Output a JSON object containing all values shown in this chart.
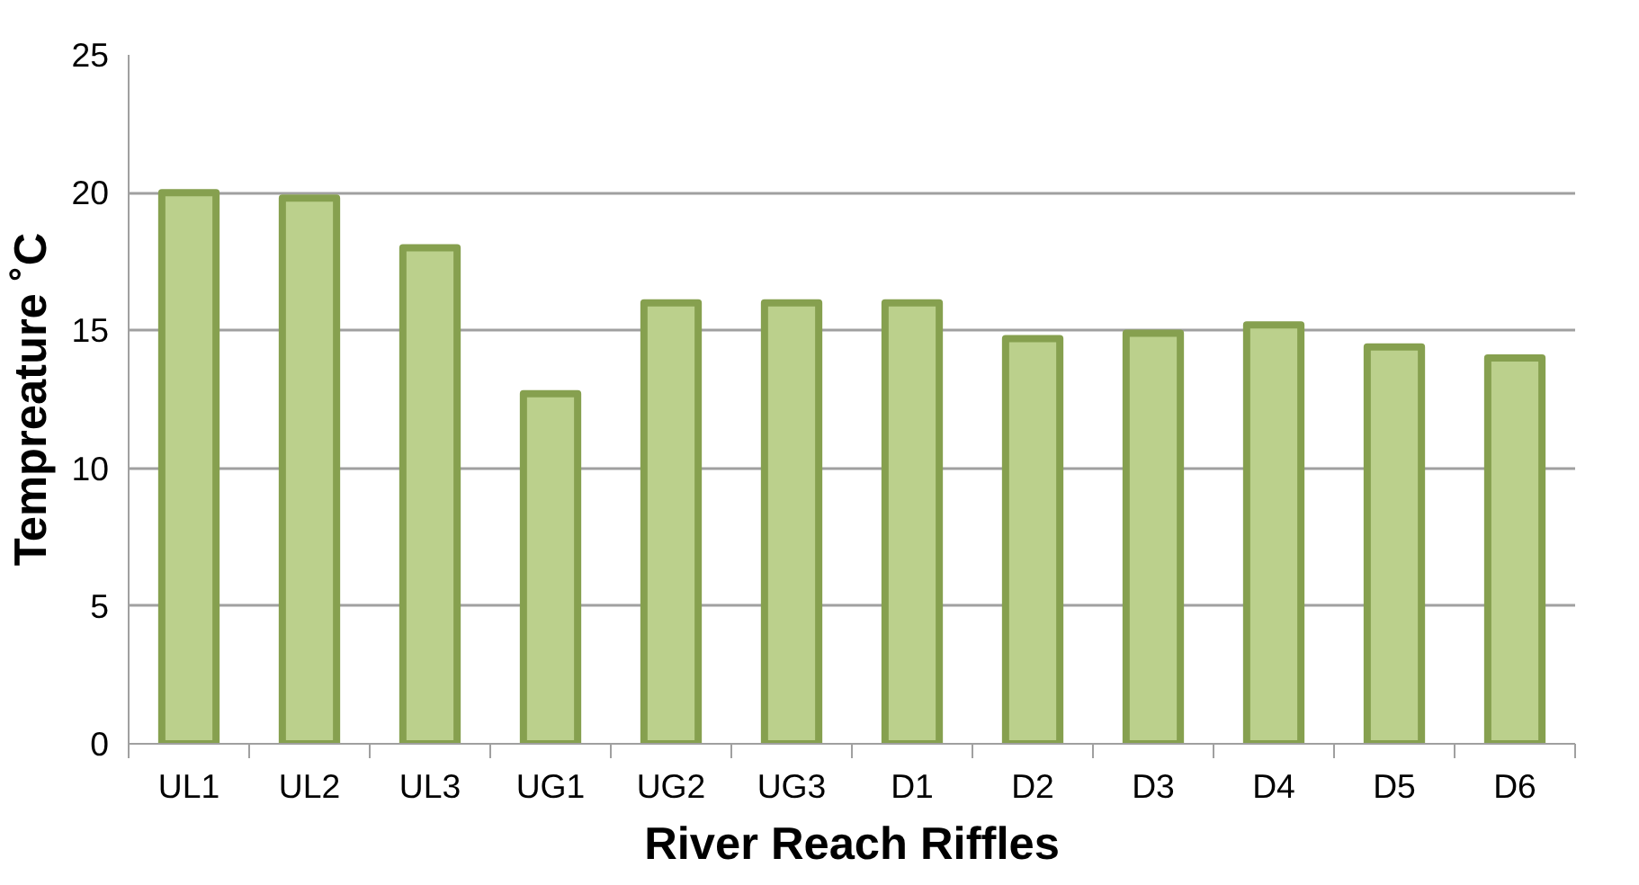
{
  "chart_data": {
    "type": "bar",
    "xlabel": "River Reach Riffles",
    "ylabel": "Tempreature ˚C",
    "categories": [
      "UL1",
      "UL2",
      "UL3",
      "UG1",
      "UG2",
      "UG3",
      "D1",
      "D2",
      "D3",
      "D4",
      "D5",
      "D6"
    ],
    "values": [
      20.0,
      19.8,
      18.0,
      12.7,
      16.0,
      16.0,
      16.0,
      14.7,
      14.9,
      15.2,
      14.4,
      14.0
    ],
    "color": "#bbd08c",
    "ylim": [
      0,
      25
    ],
    "yticks": [
      0,
      5,
      10,
      15,
      20,
      25
    ],
    "grid": "y"
  }
}
